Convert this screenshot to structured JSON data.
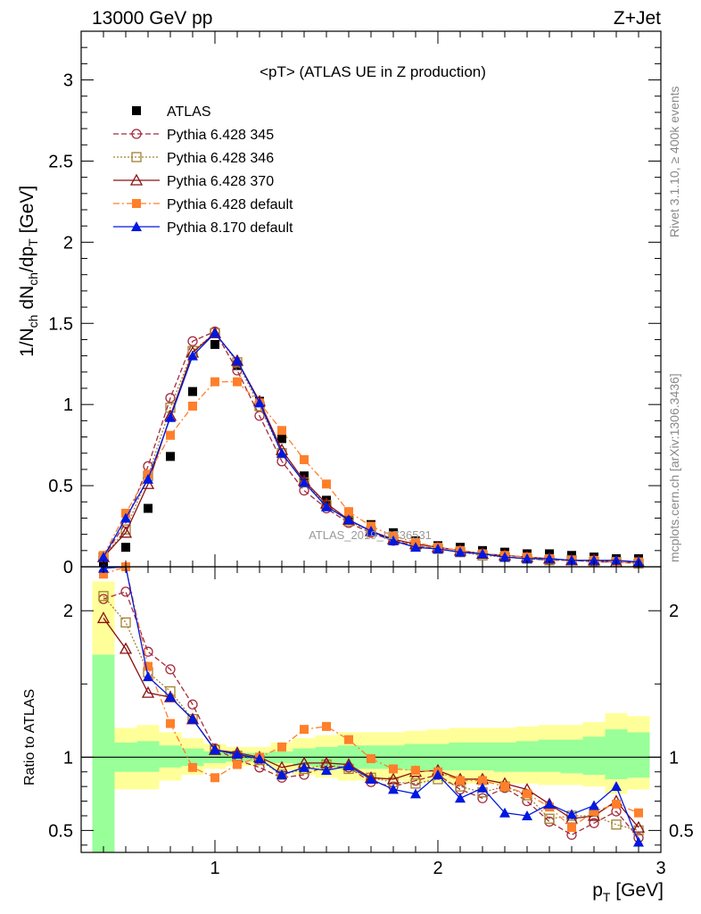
{
  "header": {
    "energy": "13000 GeV pp",
    "process": "Z+Jet"
  },
  "side_labels": {
    "rivet": "Rivet 3.1.10, ≥ 400k events",
    "mcplots": "mcplots.cern.ch [arXiv:1306.3436]"
  },
  "watermark": "ATLAS_2019_I1736531",
  "colors": {
    "py345": "#a52a3d",
    "py346": "#a08030",
    "py370": "#8b1010",
    "pydef": "#ff7f2a",
    "py8": "#0018e0",
    "band_yellow": "#ffff99",
    "band_green": "#99ff99"
  },
  "chart_data": [
    {
      "type": "scatter",
      "panel": "main",
      "title": "<pT> (ATLAS UE in Z production)",
      "xlabel": "p_T [GeV]",
      "ylabel": "1/N_ch dN_ch/dp_T [GeV]",
      "xlim": [
        0.4,
        3.0
      ],
      "ylim": [
        0,
        3.3
      ],
      "yticks": [
        "0",
        "0.5",
        "1",
        "1.5",
        "2",
        "2.5",
        "3"
      ],
      "legend_position": "top-left",
      "x": [
        0.5,
        0.6,
        0.7,
        0.8,
        0.9,
        1.0,
        1.1,
        1.2,
        1.3,
        1.4,
        1.5,
        1.6,
        1.7,
        1.8,
        1.9,
        2.0,
        2.1,
        2.2,
        2.3,
        2.4,
        2.5,
        2.6,
        2.7,
        2.8,
        2.9
      ],
      "series": [
        {
          "name": "ATLAS",
          "values": [
            0.03,
            0.12,
            0.36,
            0.68,
            1.08,
            1.37,
            1.24,
            1.02,
            0.79,
            0.56,
            0.41,
            0.31,
            0.26,
            0.21,
            0.16,
            0.13,
            0.12,
            0.1,
            0.09,
            0.08,
            0.08,
            0.07,
            0.06,
            0.05,
            0.05
          ]
        },
        {
          "name": "Pythia 6.428 345",
          "values": [
            0.06,
            0.27,
            0.62,
            1.04,
            1.39,
            1.45,
            1.21,
            0.93,
            0.65,
            0.47,
            0.36,
            0.27,
            0.21,
            0.16,
            0.13,
            0.11,
            0.09,
            0.08,
            0.06,
            0.05,
            0.04,
            0.04,
            0.03,
            0.03,
            0.02
          ]
        },
        {
          "name": "Pythia 6.428 346",
          "values": [
            0.06,
            0.23,
            0.56,
            0.98,
            1.33,
            1.44,
            1.26,
            0.99,
            0.7,
            0.52,
            0.38,
            0.28,
            0.22,
            0.17,
            0.13,
            0.11,
            0.09,
            0.07,
            0.06,
            0.05,
            0.04,
            0.04,
            0.03,
            0.03,
            0.02
          ]
        },
        {
          "name": "Pythia 6.428 370",
          "values": [
            0.06,
            0.21,
            0.51,
            0.93,
            1.32,
            1.44,
            1.27,
            1.02,
            0.72,
            0.53,
            0.39,
            0.29,
            0.22,
            0.17,
            0.14,
            0.12,
            0.1,
            0.08,
            0.07,
            0.06,
            0.05,
            0.04,
            0.04,
            0.03,
            0.03
          ]
        },
        {
          "name": "Pythia 6.428 default",
          "values": [
            0.07,
            0.33,
            0.57,
            0.81,
            0.99,
            1.14,
            1.14,
            1.01,
            0.84,
            0.66,
            0.51,
            0.34,
            0.25,
            0.19,
            0.15,
            0.12,
            0.1,
            0.08,
            0.07,
            0.06,
            0.05,
            0.04,
            0.04,
            0.03,
            0.03
          ]
        },
        {
          "name": "Pythia 8.170 default",
          "values": [
            0.06,
            0.3,
            0.54,
            0.92,
            1.3,
            1.44,
            1.27,
            1.01,
            0.7,
            0.52,
            0.37,
            0.29,
            0.22,
            0.16,
            0.12,
            0.11,
            0.09,
            0.08,
            0.06,
            0.05,
            0.05,
            0.04,
            0.04,
            0.04,
            0.03
          ]
        }
      ]
    },
    {
      "type": "line",
      "panel": "ratio",
      "ylabel": "Ratio to ATLAS",
      "xlabel": "p_T [GeV]",
      "xlim": [
        0.4,
        3.0
      ],
      "ylim": [
        0.35,
        2.3
      ],
      "xticks": [
        "1",
        "2",
        "3"
      ],
      "yticks": [
        "0.5",
        "1",
        "2"
      ],
      "x": [
        0.5,
        0.6,
        0.7,
        0.8,
        0.9,
        1.0,
        1.1,
        1.2,
        1.3,
        1.4,
        1.5,
        1.6,
        1.7,
        1.8,
        1.9,
        2.0,
        2.1,
        2.2,
        2.3,
        2.4,
        2.5,
        2.6,
        2.7,
        2.8,
        2.9
      ],
      "band_edges": [
        0.45,
        0.55,
        0.65,
        0.75,
        0.85,
        0.95,
        1.05,
        1.15,
        1.25,
        1.35,
        1.45,
        1.55,
        1.65,
        1.75,
        1.85,
        1.95,
        2.05,
        2.15,
        2.25,
        2.35,
        2.45,
        2.55,
        2.65,
        2.75,
        2.85,
        2.95
      ],
      "band_yellow": [
        [
          0.35,
          2.2
        ],
        [
          0.78,
          1.2
        ],
        [
          0.78,
          1.22
        ],
        [
          0.84,
          1.17
        ],
        [
          0.88,
          1.13
        ],
        [
          0.92,
          1.09
        ],
        [
          0.94,
          1.07
        ],
        [
          0.94,
          1.07
        ],
        [
          0.91,
          1.1
        ],
        [
          0.88,
          1.13
        ],
        [
          0.86,
          1.15
        ],
        [
          0.84,
          1.17
        ],
        [
          0.84,
          1.17
        ],
        [
          0.84,
          1.17
        ],
        [
          0.83,
          1.18
        ],
        [
          0.83,
          1.19
        ],
        [
          0.82,
          1.2
        ],
        [
          0.82,
          1.2
        ],
        [
          0.82,
          1.2
        ],
        [
          0.82,
          1.21
        ],
        [
          0.81,
          1.22
        ],
        [
          0.81,
          1.22
        ],
        [
          0.8,
          1.24
        ],
        [
          0.75,
          1.3
        ],
        [
          0.78,
          1.28
        ]
      ],
      "band_green": [
        [
          0.35,
          1.7
        ],
        [
          0.9,
          1.1
        ],
        [
          0.9,
          1.11
        ],
        [
          0.93,
          1.08
        ],
        [
          0.94,
          1.06
        ],
        [
          0.96,
          1.04
        ],
        [
          0.97,
          1.03
        ],
        [
          0.97,
          1.03
        ],
        [
          0.96,
          1.04
        ],
        [
          0.94,
          1.06
        ],
        [
          0.93,
          1.07
        ],
        [
          0.92,
          1.08
        ],
        [
          0.92,
          1.08
        ],
        [
          0.92,
          1.08
        ],
        [
          0.91,
          1.09
        ],
        [
          0.91,
          1.09
        ],
        [
          0.91,
          1.1
        ],
        [
          0.91,
          1.1
        ],
        [
          0.9,
          1.1
        ],
        [
          0.9,
          1.11
        ],
        [
          0.9,
          1.12
        ],
        [
          0.89,
          1.12
        ],
        [
          0.88,
          1.14
        ],
        [
          0.85,
          1.19
        ],
        [
          0.86,
          1.17
        ]
      ],
      "series": [
        {
          "name": "Pythia 6.428 345",
          "values": [
            2.08,
            2.13,
            1.72,
            1.6,
            1.36,
            1.06,
            0.98,
            0.93,
            0.86,
            0.88,
            0.94,
            0.93,
            0.83,
            0.8,
            0.84,
            0.88,
            0.78,
            0.72,
            0.79,
            0.7,
            0.56,
            0.47,
            0.55,
            0.63,
            0.45
          ]
        },
        {
          "name": "Pythia 6.428 346",
          "values": [
            2.1,
            1.92,
            1.58,
            1.45,
            1.26,
            1.05,
            1.01,
            0.98,
            0.88,
            0.92,
            0.95,
            0.92,
            0.86,
            0.83,
            0.82,
            0.85,
            0.8,
            0.76,
            0.8,
            0.74,
            0.58,
            0.6,
            0.6,
            0.54,
            0.5
          ]
        },
        {
          "name": "Pythia 6.428 370",
          "values": [
            1.95,
            1.74,
            1.44,
            1.41,
            1.26,
            1.05,
            1.03,
            1.0,
            0.93,
            0.96,
            0.96,
            0.95,
            0.86,
            0.85,
            0.9,
            0.91,
            0.85,
            0.85,
            0.82,
            0.78,
            0.68,
            0.58,
            0.6,
            0.7,
            0.52
          ]
        },
        {
          "name": "Pythia 6.428 default",
          "values": [
            2.25,
            2.3,
            1.62,
            1.23,
            0.93,
            0.86,
            0.95,
            1.0,
            1.07,
            1.19,
            1.21,
            1.12,
            0.99,
            0.92,
            0.91,
            0.9,
            0.84,
            0.84,
            0.8,
            0.75,
            0.66,
            0.52,
            0.63,
            0.68,
            0.62
          ]
        },
        {
          "name": "Pythia 8.170 default",
          "values": [
            2.29,
            2.31,
            1.55,
            1.41,
            1.26,
            1.05,
            1.02,
            0.99,
            0.88,
            0.93,
            0.91,
            0.94,
            0.85,
            0.78,
            0.75,
            0.88,
            0.72,
            0.79,
            0.62,
            0.6,
            0.68,
            0.61,
            0.67,
            0.8,
            0.42
          ]
        }
      ]
    }
  ]
}
